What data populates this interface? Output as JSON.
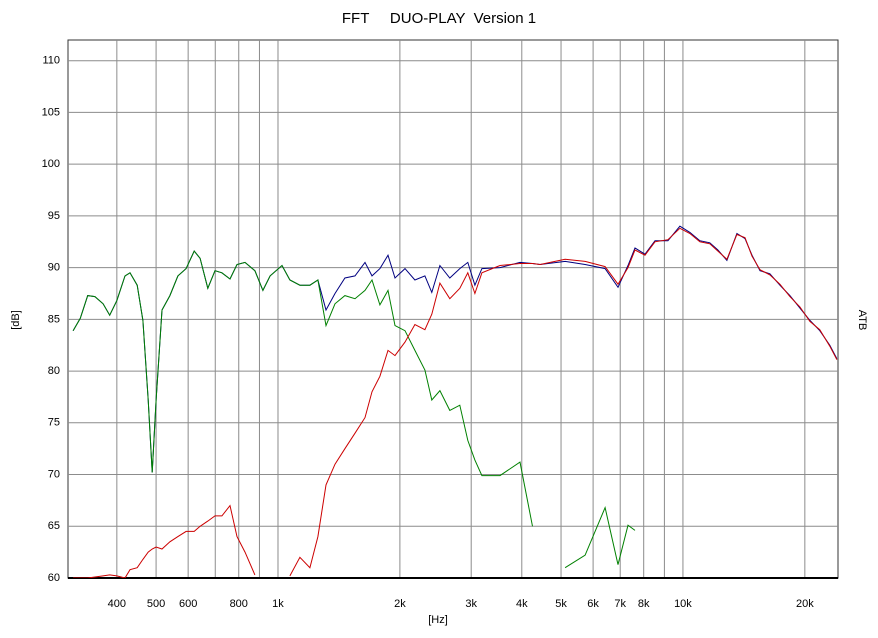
{
  "chart_data": {
    "type": "line",
    "title": "FFT     DUO-PLAY  Version 1",
    "x_label": "[Hz]",
    "y_label": "[dB]",
    "right_label": "ATB",
    "x_scale": "log",
    "grid": true,
    "xlim": [
      303,
      24150
    ],
    "ylim": [
      60,
      112
    ],
    "xticks": [
      400,
      500,
      600,
      800,
      {
        "value": 1000,
        "label": "1k"
      },
      {
        "value": 2000,
        "label": "2k"
      },
      {
        "value": 3000,
        "label": "3k"
      },
      {
        "value": 4000,
        "label": "4k"
      },
      {
        "value": 5000,
        "label": "5k"
      },
      {
        "value": 6000,
        "label": "6k"
      },
      {
        "value": 7000,
        "label": "7k"
      },
      {
        "value": 8000,
        "label": "8k"
      },
      {
        "value": 10000,
        "label": "10k"
      },
      {
        "value": 20000,
        "label": "20k"
      }
    ],
    "xminor": [
      700,
      900,
      9000
    ],
    "yticks": [
      60,
      65,
      70,
      75,
      80,
      85,
      90,
      95,
      100,
      105,
      110
    ],
    "x": [
      312,
      325,
      339,
      353,
      370,
      384,
      400,
      419,
      431,
      449,
      464,
      478,
      489,
      500,
      517,
      541,
      566,
      593,
      621,
      642,
      671,
      699,
      727,
      761,
      792,
      829,
      877,
      918,
      956,
      1023,
      1070,
      1133,
      1199,
      1255,
      1314,
      1383,
      1463,
      1549,
      1640,
      1707,
      1785,
      1869,
      1945,
      2059,
      2178,
      2306,
      2398,
      2511,
      2657,
      2811,
      2943,
      3063,
      3188,
      3533,
      3960,
      4250,
      4440,
      5116,
      5734,
      6422,
      6914,
      7319,
      7615,
      8060,
      8529,
      9183,
      9831,
      10406,
      11011,
      11652,
      12201,
      12840,
      13591,
      14230,
      14812,
      15500,
      16400,
      17360,
      18370,
      19450,
      20580,
      21780,
      23050,
      24000
    ],
    "series": [
      {
        "color": "#000080",
        "values": [
          83.9,
          85.1,
          87.3,
          87.2,
          86.5,
          85.4,
          86.8,
          89.2,
          89.5,
          88.3,
          84.9,
          77.2,
          70.2,
          77.2,
          85.9,
          87.3,
          89.2,
          89.9,
          91.6,
          90.9,
          88.0,
          89.7,
          89.5,
          88.9,
          90.3,
          90.5,
          89.7,
          87.8,
          89.2,
          90.2,
          88.8,
          88.3,
          88.3,
          88.8,
          85.9,
          87.5,
          89.0,
          89.2,
          90.5,
          89.2,
          89.9,
          91.2,
          89.0,
          89.9,
          88.8,
          89.2,
          87.6,
          90.2,
          89.0,
          89.9,
          90.5,
          88.3,
          89.9,
          90.0,
          90.5,
          90.4,
          90.3,
          90.6,
          90.3,
          89.9,
          88.1,
          90.2,
          91.9,
          91.3,
          92.6,
          92.6,
          94.0,
          93.4,
          92.6,
          92.4,
          91.7,
          90.7,
          93.3,
          92.8,
          91.2,
          89.7,
          89.4,
          88.3,
          87.3,
          86.1,
          84.9,
          83.9,
          82.5,
          81.2
        ]
      },
      {
        "color": "#008000",
        "values": [
          83.9,
          85.1,
          87.3,
          87.2,
          86.5,
          85.4,
          86.8,
          89.2,
          89.5,
          88.3,
          84.9,
          77.2,
          70.2,
          77.2,
          85.9,
          87.3,
          89.2,
          89.9,
          91.6,
          90.9,
          88.0,
          89.7,
          89.5,
          88.9,
          90.3,
          90.5,
          89.7,
          87.8,
          89.2,
          90.2,
          88.8,
          88.3,
          88.3,
          88.8,
          84.4,
          86.5,
          87.3,
          87.0,
          87.8,
          88.8,
          86.4,
          87.8,
          84.4,
          83.9,
          82.0,
          80.1,
          77.2,
          78.1,
          76.2,
          76.7,
          73.3,
          71.4,
          69.9,
          69.9,
          71.2,
          65.0,
          null,
          61.0,
          62.2,
          66.8,
          61.3,
          65.1,
          64.6,
          null,
          null,
          null,
          null,
          null,
          null,
          null,
          null,
          null,
          null,
          null,
          null,
          null,
          null,
          null,
          null,
          null,
          null,
          null,
          null,
          null
        ]
      },
      {
        "color": "#cc0000",
        "values": [
          60.0,
          60.0,
          60.0,
          60.1,
          60.2,
          60.3,
          60.2,
          60.0,
          60.8,
          61.0,
          61.8,
          62.5,
          62.8,
          63.0,
          62.8,
          63.5,
          64.0,
          64.5,
          64.5,
          65.0,
          65.5,
          66.0,
          66.0,
          67.0,
          64.0,
          62.5,
          60.3,
          null,
          null,
          null,
          60.2,
          62.0,
          61.0,
          64.0,
          69.0,
          71.0,
          72.5,
          74.0,
          75.5,
          78.0,
          79.5,
          82.0,
          81.5,
          82.8,
          84.5,
          84.0,
          85.5,
          88.5,
          87.0,
          88.0,
          89.5,
          87.5,
          89.5,
          90.2,
          90.4,
          90.4,
          90.3,
          90.8,
          90.6,
          90.1,
          88.4,
          90.0,
          91.7,
          91.2,
          92.5,
          92.7,
          93.8,
          93.3,
          92.5,
          92.3,
          91.6,
          90.8,
          93.2,
          92.9,
          91.1,
          89.8,
          89.3,
          88.4,
          87.2,
          86.2,
          84.8,
          84.0,
          82.4,
          81.1
        ]
      }
    ]
  }
}
